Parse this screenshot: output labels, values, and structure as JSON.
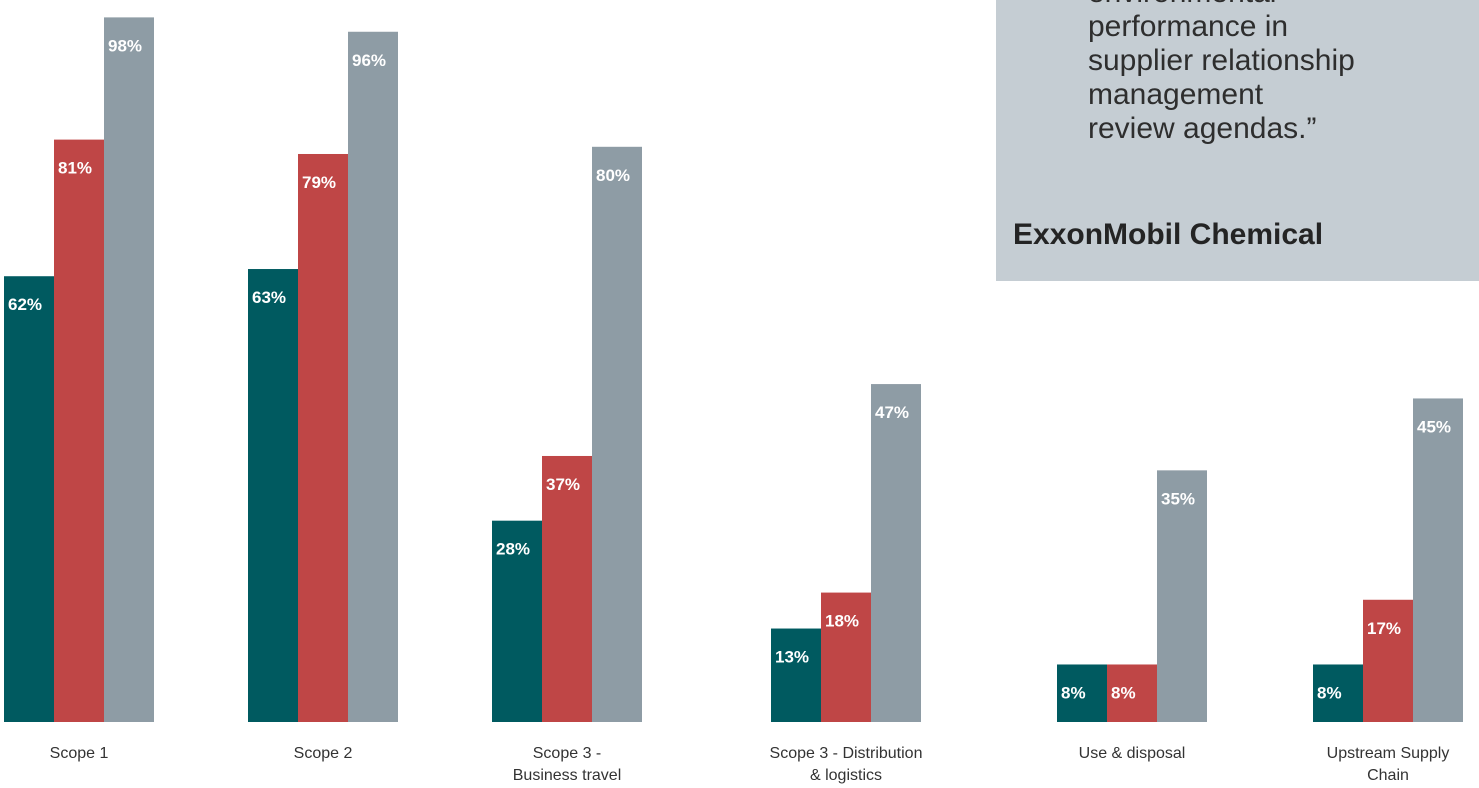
{
  "quote": {
    "lines": [
      "environmental",
      "performance in",
      "supplier relationship",
      "management",
      "review agendas.”"
    ],
    "source": "ExxonMobil Chemical"
  },
  "colors": {
    "series_1": "#005a60",
    "series_2": "#bf4646",
    "series_3": "#8e9ca5",
    "quote_bg": "#c5cdd3"
  },
  "chart_data": {
    "type": "bar",
    "categories": [
      [
        "Scope 1"
      ],
      [
        "Scope 2"
      ],
      [
        "Scope 3 -",
        "Business travel"
      ],
      [
        "Scope 3 - Distribution",
        "& logistics"
      ],
      [
        "Use & disposal"
      ],
      [
        "Upstream Supply",
        "Chain"
      ]
    ],
    "series": [
      {
        "values": [
          62,
          63,
          28,
          13,
          8,
          8
        ],
        "labels": [
          "62%",
          "63%",
          "28%",
          "13%",
          "8%",
          "8%"
        ]
      },
      {
        "values": [
          81,
          79,
          37,
          18,
          8,
          17
        ],
        "labels": [
          "81%",
          "79%",
          "37%",
          "18%",
          "8%",
          "17%"
        ]
      },
      {
        "values": [
          98,
          96,
          80,
          47,
          35,
          45
        ],
        "labels": [
          "98%",
          "96%",
          "80%",
          "47%",
          "35%",
          "45%"
        ]
      }
    ],
    "ylim": [
      0,
      100
    ]
  }
}
